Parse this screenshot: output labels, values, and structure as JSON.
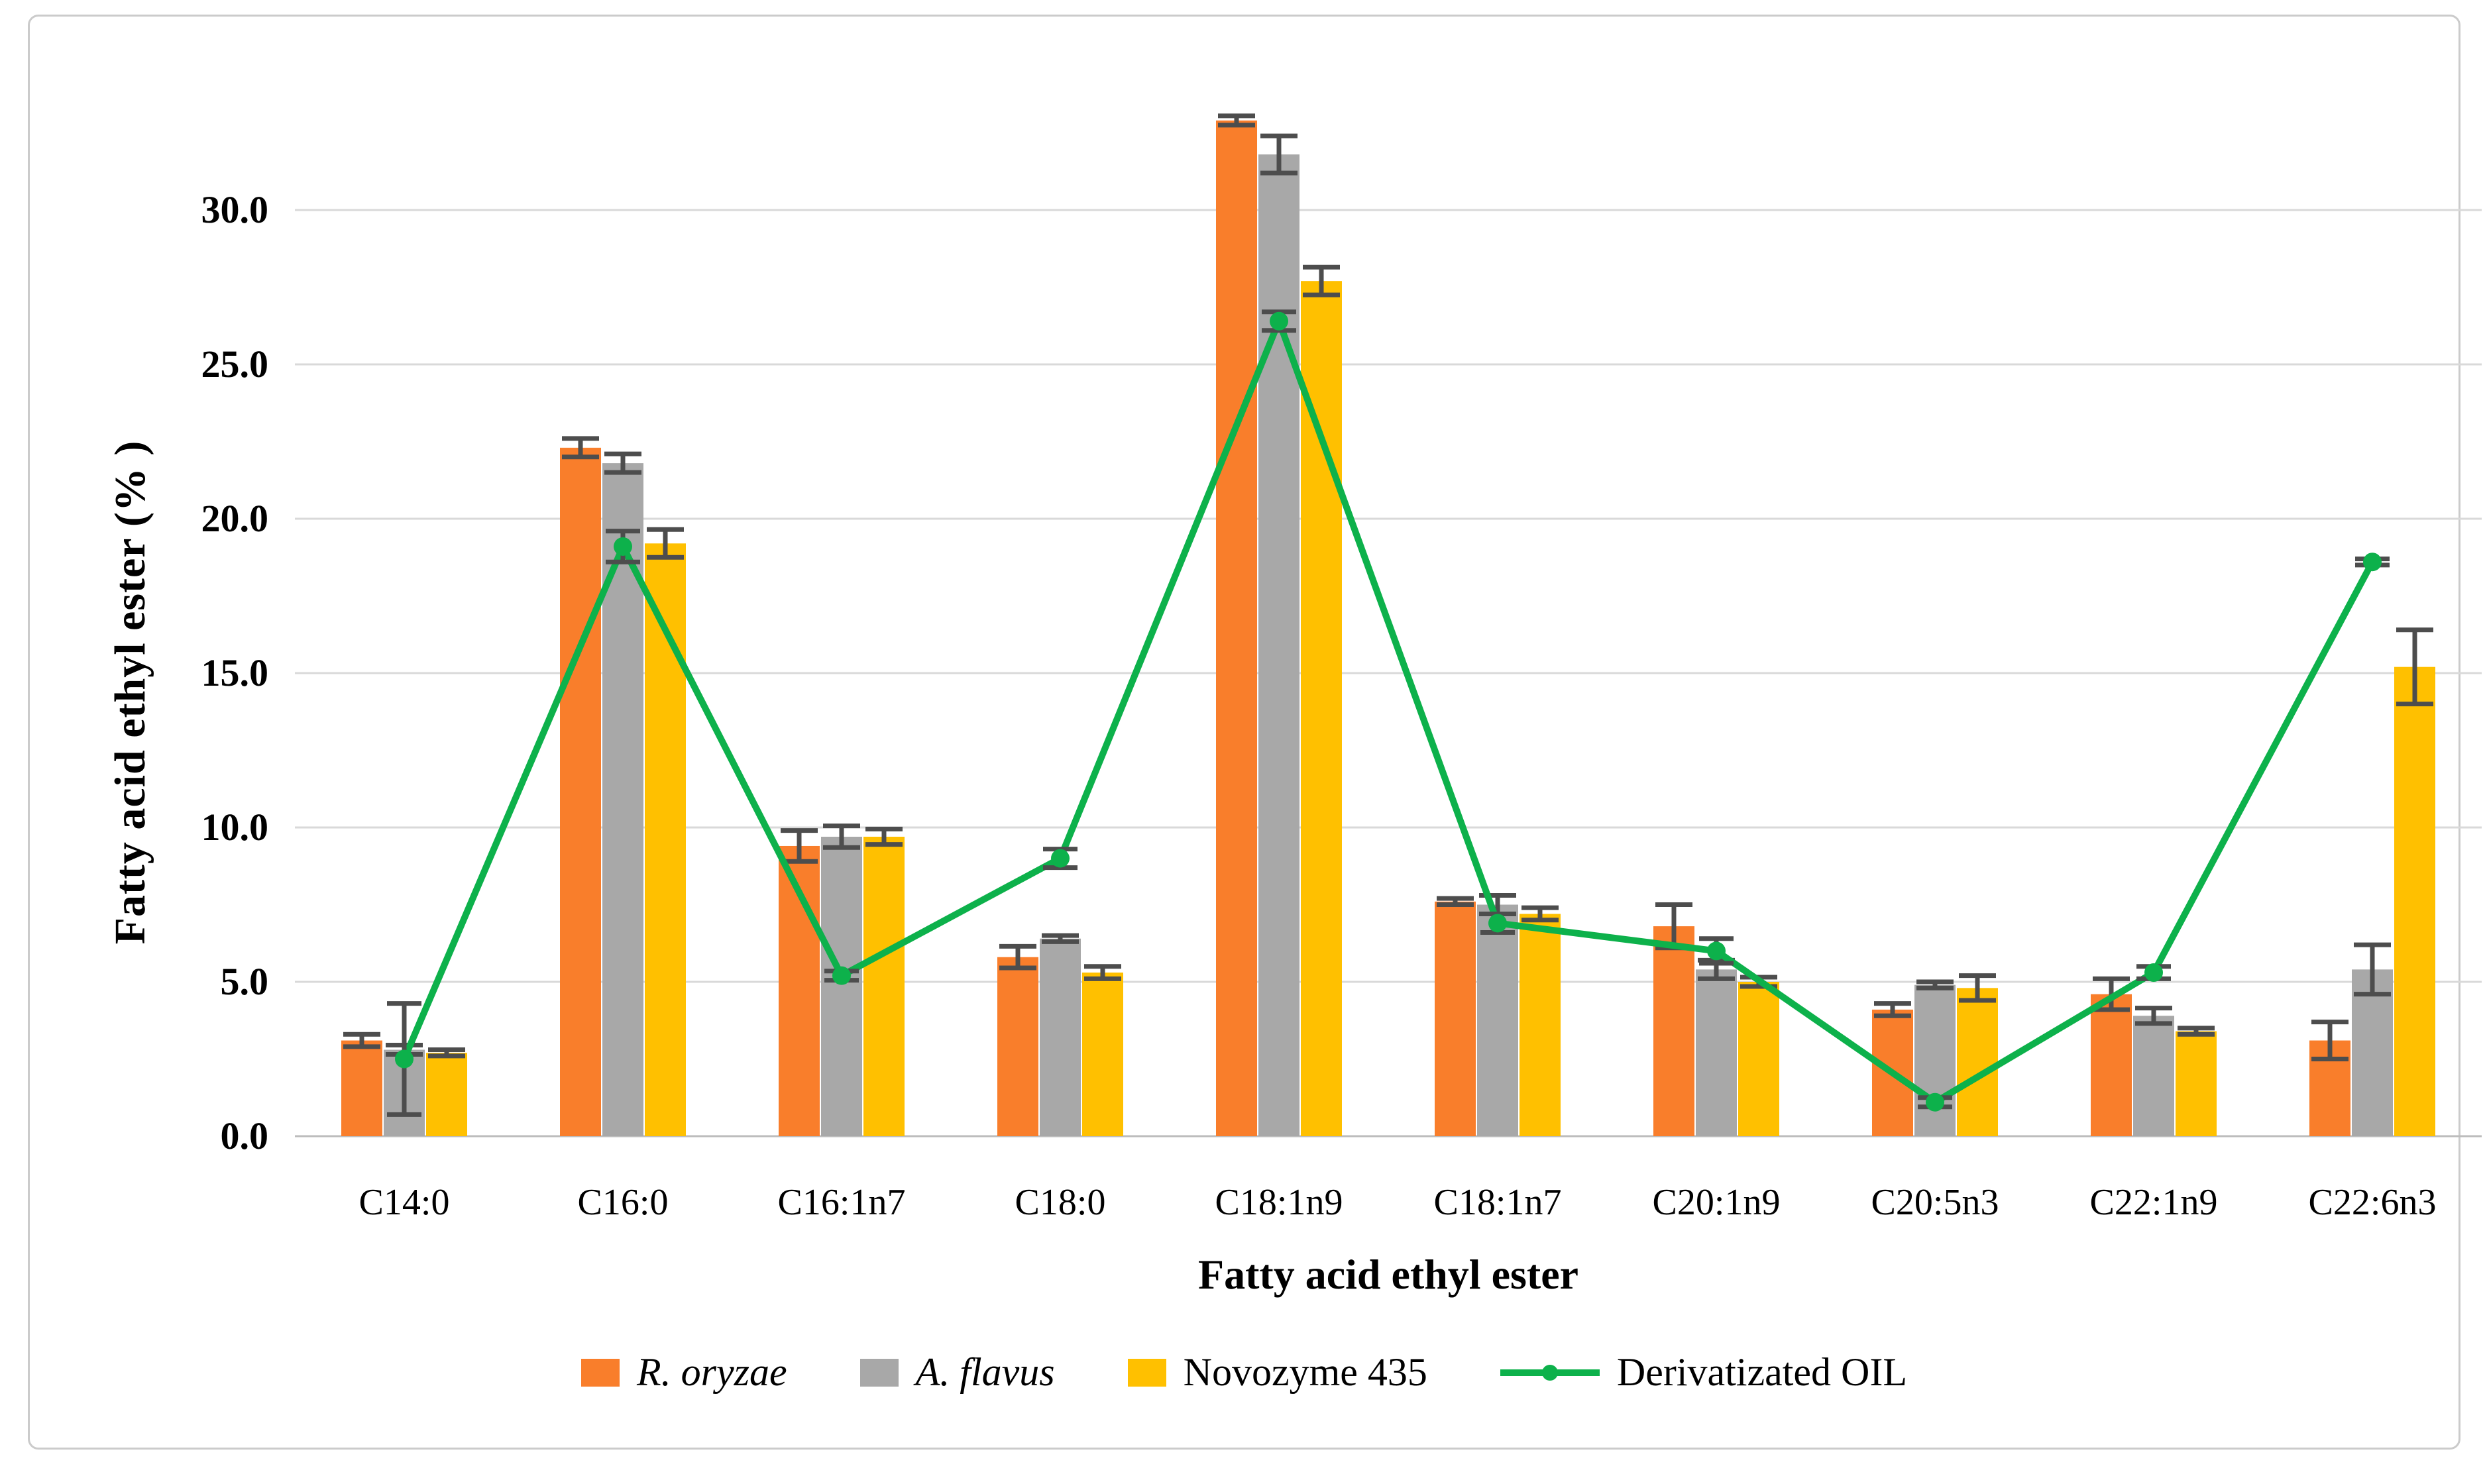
{
  "figure": {
    "background": "#ffffff",
    "card_border_color": "#cbcbcb"
  },
  "chart_data": {
    "type": "bar",
    "subtype": "grouped bars with overlaid line series and error bars",
    "title": "",
    "xlabel": "Fatty acid ethyl ester",
    "ylabel": "Fatty acid ethyl ester (% )",
    "ylim": [
      0,
      33
    ],
    "ytick_step": 5,
    "ytick_labels": [
      "0.0",
      "5.0",
      "10.0",
      "15.0",
      "20.0",
      "25.0",
      "30.0"
    ],
    "grid": true,
    "gridline_color": "#d9d9d9",
    "axis_line_color": "#bdbdbd",
    "error_bar_color": "#4d4d4d",
    "legend_position": "bottom",
    "categories": [
      "C14:0",
      "C16:0",
      "C16:1n7",
      "C18:0",
      "C18:1n9",
      "C18:1n7",
      "C20:1n9",
      "C20:5n3",
      "C22:1n9",
      "C22:6n3"
    ],
    "series": [
      {
        "name": "R. oryzae",
        "type": "bar",
        "italic": true,
        "color": "#f97e2b",
        "values": [
          3.1,
          22.3,
          9.4,
          5.8,
          32.9,
          7.6,
          6.8,
          4.1,
          4.6,
          3.1
        ],
        "errors": [
          0.2,
          0.3,
          0.5,
          0.35,
          0.15,
          0.1,
          0.7,
          0.2,
          0.5,
          0.6
        ]
      },
      {
        "name": "A. flavus",
        "type": "bar",
        "italic": true,
        "color": "#a8a8a8",
        "values": [
          2.8,
          21.8,
          9.7,
          6.4,
          31.8,
          7.5,
          5.4,
          4.9,
          3.9,
          5.4
        ],
        "errors": [
          0.15,
          0.3,
          0.35,
          0.1,
          0.6,
          0.3,
          0.3,
          0.1,
          0.25,
          0.8
        ]
      },
      {
        "name": "Novozyme 435",
        "type": "bar",
        "italic": false,
        "color": "#ffc000",
        "values": [
          2.7,
          19.2,
          9.7,
          5.3,
          27.7,
          7.2,
          5.0,
          4.8,
          3.4,
          15.2
        ],
        "errors": [
          0.1,
          0.45,
          0.25,
          0.2,
          0.45,
          0.2,
          0.15,
          0.4,
          0.1,
          1.2
        ]
      },
      {
        "name": "Derivatizated OIL",
        "type": "line",
        "italic": false,
        "color": "#0db14b",
        "values": [
          2.5,
          19.1,
          5.2,
          9.0,
          26.4,
          6.9,
          6.0,
          1.1,
          5.3,
          18.6
        ],
        "errors": [
          1.8,
          0.5,
          0.15,
          0.3,
          0.3,
          0.3,
          0.4,
          0.15,
          0.2,
          0.1
        ]
      }
    ]
  }
}
